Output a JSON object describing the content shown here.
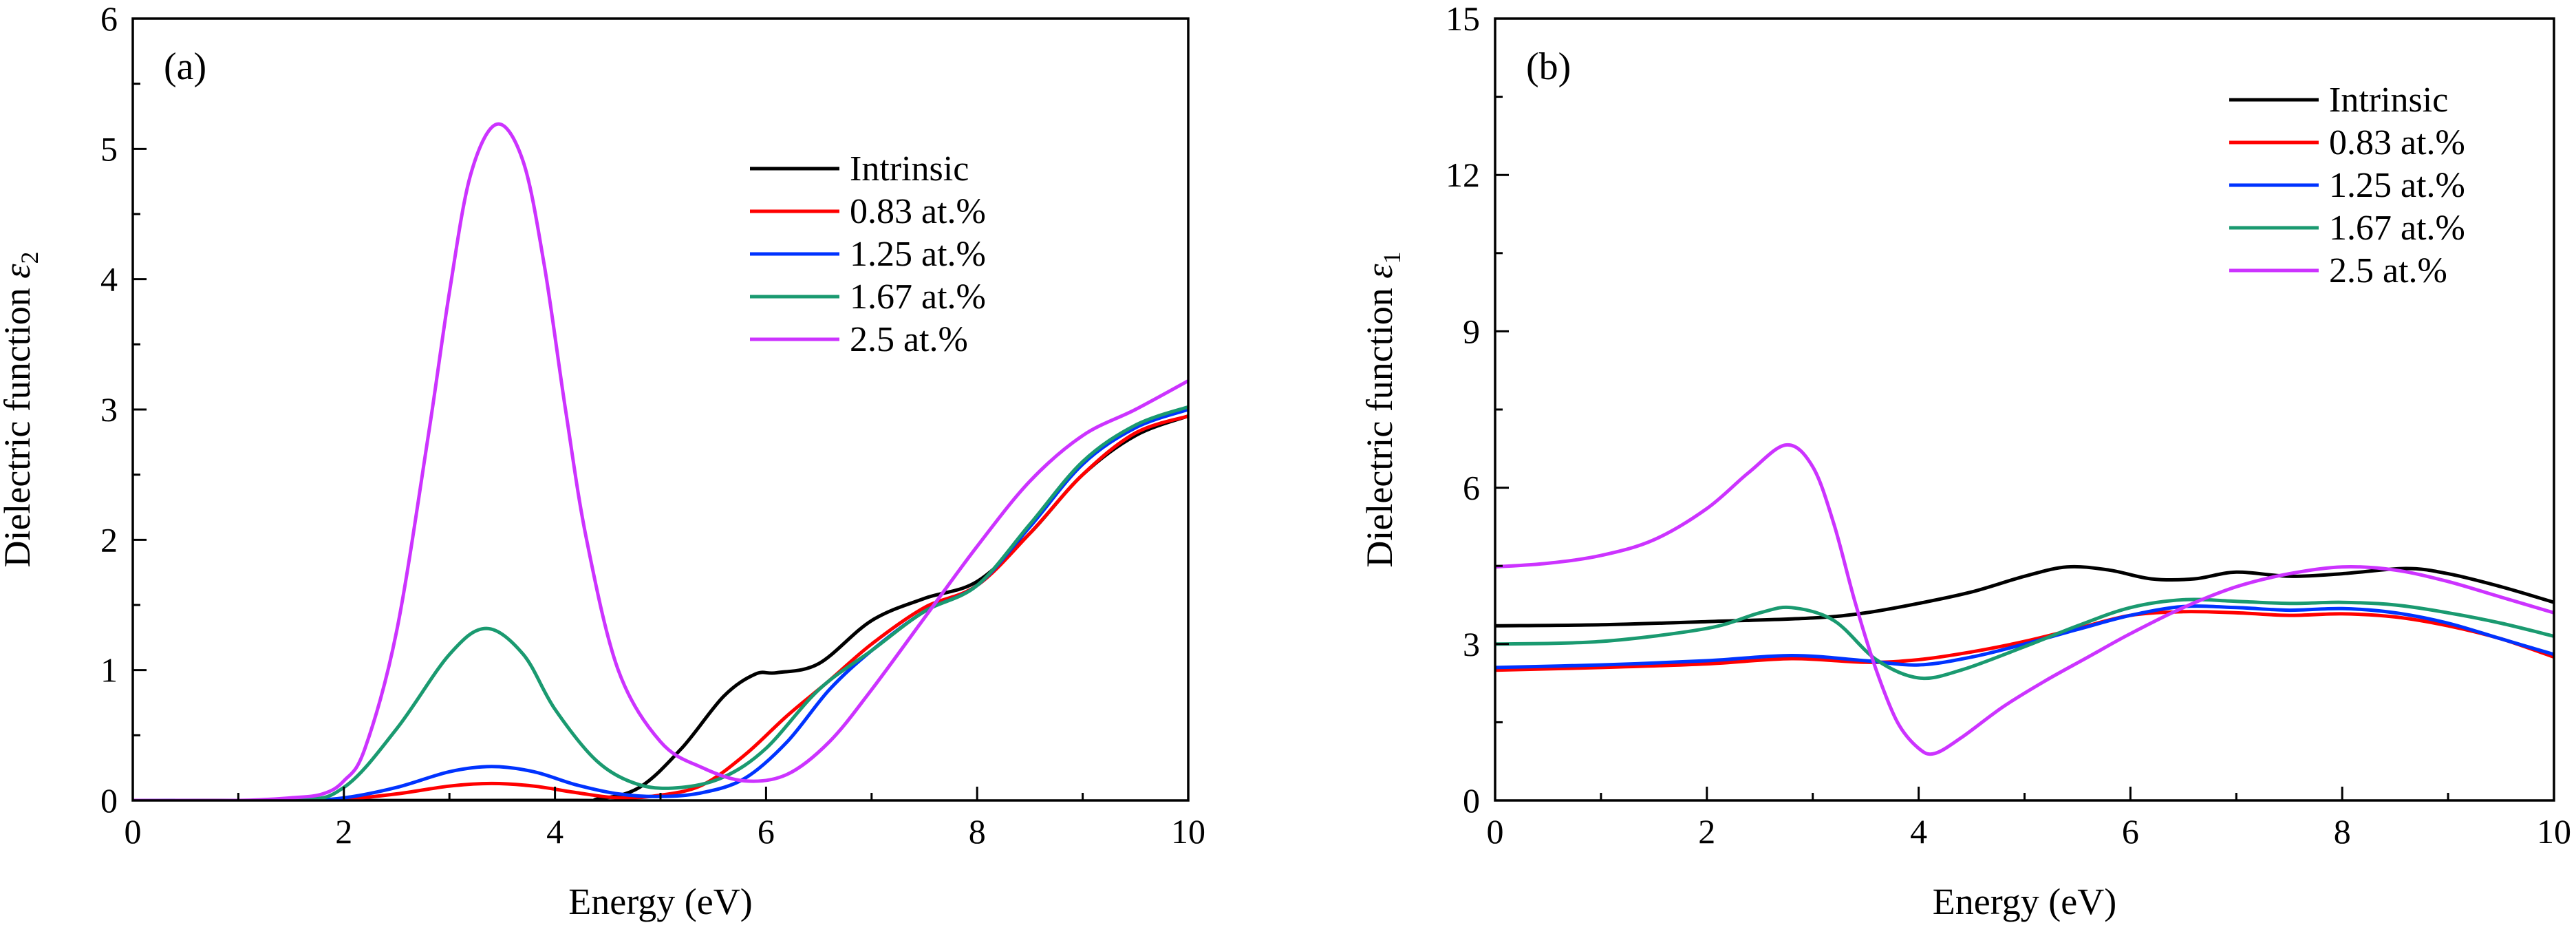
{
  "chart_data": [
    {
      "type": "line",
      "panel_label": "(a)",
      "xlabel": "Energy (eV)",
      "ylabel": "Dielectric function ε2",
      "ylabel_main": "Dielectric function ",
      "ylabel_sym": "ε",
      "ylabel_sub": "2",
      "xlim": [
        0,
        10
      ],
      "ylim": [
        0,
        6
      ],
      "xticks": [
        0,
        2,
        4,
        6,
        8,
        10
      ],
      "yticks": [
        0,
        1,
        2,
        3,
        4,
        5,
        6
      ],
      "legend_position": "top-right",
      "series": [
        {
          "name": "Intrinsic",
          "color": "#000000",
          "x": [
            0,
            4.0,
            4.4,
            4.8,
            5.2,
            5.6,
            5.9,
            6.1,
            6.5,
            7.0,
            7.5,
            8.0,
            8.5,
            9.0,
            9.5,
            10.0
          ],
          "y": [
            0,
            0,
            0.01,
            0.1,
            0.4,
            0.8,
            0.97,
            0.98,
            1.05,
            1.38,
            1.55,
            1.68,
            2.05,
            2.5,
            2.8,
            2.95
          ]
        },
        {
          "name": "0.83 at.%",
          "color": "#ff0000",
          "x": [
            0,
            1.5,
            2.0,
            2.5,
            3.0,
            3.4,
            3.8,
            4.2,
            4.6,
            5.0,
            5.4,
            5.8,
            6.2,
            6.6,
            7.0,
            7.5,
            8.0,
            8.5,
            9.0,
            9.5,
            10.0
          ],
          "y": [
            0,
            0,
            0.01,
            0.05,
            0.11,
            0.13,
            0.11,
            0.06,
            0.02,
            0.04,
            0.12,
            0.35,
            0.65,
            0.92,
            1.2,
            1.48,
            1.65,
            2.05,
            2.5,
            2.82,
            2.95
          ]
        },
        {
          "name": "1.25 at.%",
          "color": "#0033ff",
          "x": [
            0,
            1.5,
            2.0,
            2.5,
            3.0,
            3.4,
            3.8,
            4.2,
            4.6,
            5.0,
            5.4,
            5.8,
            6.2,
            6.6,
            7.0,
            7.5,
            8.0,
            8.5,
            9.0,
            9.5,
            10.0
          ],
          "y": [
            0,
            0,
            0.02,
            0.1,
            0.22,
            0.26,
            0.22,
            0.12,
            0.05,
            0.03,
            0.06,
            0.17,
            0.45,
            0.85,
            1.15,
            1.45,
            1.65,
            2.1,
            2.58,
            2.86,
            3.0
          ]
        },
        {
          "name": "1.67 at.%",
          "color": "#1a9a70",
          "x": [
            0,
            1.5,
            2.0,
            2.5,
            3.0,
            3.35,
            3.7,
            4.0,
            4.4,
            4.8,
            5.2,
            5.6,
            6.0,
            6.5,
            7.0,
            7.5,
            8.0,
            8.5,
            9.0,
            9.5,
            10.0
          ],
          "y": [
            0,
            0,
            0.1,
            0.55,
            1.12,
            1.32,
            1.12,
            0.7,
            0.3,
            0.12,
            0.1,
            0.18,
            0.4,
            0.85,
            1.15,
            1.45,
            1.65,
            2.12,
            2.6,
            2.88,
            3.02
          ]
        },
        {
          "name": "2.5 at.%",
          "color": "#cc33ff",
          "x": [
            0,
            1.0,
            1.5,
            1.8,
            2.0,
            2.2,
            2.5,
            2.8,
            3.0,
            3.2,
            3.45,
            3.7,
            3.9,
            4.1,
            4.3,
            4.6,
            5.0,
            5.4,
            5.8,
            6.2,
            6.6,
            7.0,
            7.5,
            8.0,
            8.5,
            9.0,
            9.5,
            10.0
          ],
          "y": [
            0,
            0,
            0.02,
            0.05,
            0.15,
            0.4,
            1.3,
            2.8,
            3.9,
            4.8,
            5.19,
            4.9,
            4.1,
            3.0,
            2.0,
            1.0,
            0.45,
            0.25,
            0.15,
            0.2,
            0.45,
            0.85,
            1.4,
            1.95,
            2.45,
            2.8,
            3.0,
            3.22
          ]
        }
      ]
    },
    {
      "type": "line",
      "panel_label": "(b)",
      "xlabel": "Energy (eV)",
      "ylabel": "Dielectric function ε1",
      "ylabel_main": "Dielectric function ",
      "ylabel_sym": "ε",
      "ylabel_sub": "1",
      "xlim": [
        0,
        10
      ],
      "ylim": [
        0,
        15
      ],
      "xticks": [
        0,
        2,
        4,
        6,
        8,
        10
      ],
      "yticks": [
        0,
        3,
        6,
        9,
        12,
        15
      ],
      "legend_position": "top-right",
      "series": [
        {
          "name": "Intrinsic",
          "color": "#000000",
          "x": [
            0,
            1.0,
            2.0,
            3.0,
            3.5,
            4.0,
            4.5,
            5.0,
            5.4,
            5.8,
            6.2,
            6.6,
            7.0,
            7.5,
            8.0,
            8.6,
            9.0,
            9.5,
            10.0
          ],
          "y": [
            3.35,
            3.37,
            3.43,
            3.5,
            3.6,
            3.78,
            4.0,
            4.3,
            4.48,
            4.42,
            4.25,
            4.25,
            4.38,
            4.3,
            4.35,
            4.45,
            4.35,
            4.1,
            3.8
          ]
        },
        {
          "name": "0.83 at.%",
          "color": "#ff0000",
          "x": [
            0,
            1.0,
            2.0,
            2.8,
            3.5,
            4.0,
            4.5,
            5.0,
            5.5,
            6.0,
            6.5,
            7.0,
            7.5,
            8.0,
            8.5,
            9.0,
            9.5,
            10.0
          ],
          "y": [
            2.5,
            2.55,
            2.62,
            2.72,
            2.65,
            2.7,
            2.85,
            3.05,
            3.3,
            3.55,
            3.62,
            3.6,
            3.55,
            3.58,
            3.52,
            3.35,
            3.1,
            2.75
          ]
        },
        {
          "name": "1.25 at.%",
          "color": "#0033ff",
          "x": [
            0,
            1.0,
            2.0,
            2.8,
            3.5,
            4.0,
            4.5,
            5.0,
            5.5,
            6.0,
            6.5,
            7.0,
            7.5,
            8.0,
            8.5,
            9.0,
            9.5,
            10.0
          ],
          "y": [
            2.55,
            2.6,
            2.68,
            2.78,
            2.68,
            2.6,
            2.75,
            3.0,
            3.28,
            3.55,
            3.72,
            3.7,
            3.65,
            3.68,
            3.6,
            3.4,
            3.1,
            2.8
          ]
        },
        {
          "name": "1.67 at.%",
          "color": "#1a9a70",
          "x": [
            0,
            1.0,
            2.0,
            2.5,
            2.8,
            3.2,
            3.6,
            4.0,
            4.4,
            5.0,
            5.5,
            6.0,
            6.5,
            7.0,
            7.5,
            8.0,
            8.5,
            9.0,
            9.5,
            10.0
          ],
          "y": [
            3.0,
            3.05,
            3.3,
            3.6,
            3.7,
            3.45,
            2.7,
            2.35,
            2.5,
            2.95,
            3.35,
            3.7,
            3.85,
            3.82,
            3.78,
            3.8,
            3.75,
            3.6,
            3.4,
            3.15
          ]
        },
        {
          "name": "2.5 at.%",
          "color": "#cc33ff",
          "x": [
            0,
            0.5,
            1.0,
            1.5,
            2.0,
            2.4,
            2.75,
            3.0,
            3.2,
            3.4,
            3.6,
            3.8,
            4.0,
            4.15,
            4.4,
            4.8,
            5.2,
            5.6,
            6.0,
            6.5,
            7.0,
            7.5,
            8.0,
            8.5,
            9.0,
            9.5,
            10.0
          ],
          "y": [
            4.48,
            4.55,
            4.7,
            5.0,
            5.6,
            6.3,
            6.82,
            6.4,
            5.3,
            3.8,
            2.5,
            1.5,
            1.0,
            0.9,
            1.2,
            1.8,
            2.3,
            2.75,
            3.2,
            3.7,
            4.1,
            4.35,
            4.48,
            4.42,
            4.2,
            3.9,
            3.6
          ]
        }
      ]
    }
  ]
}
